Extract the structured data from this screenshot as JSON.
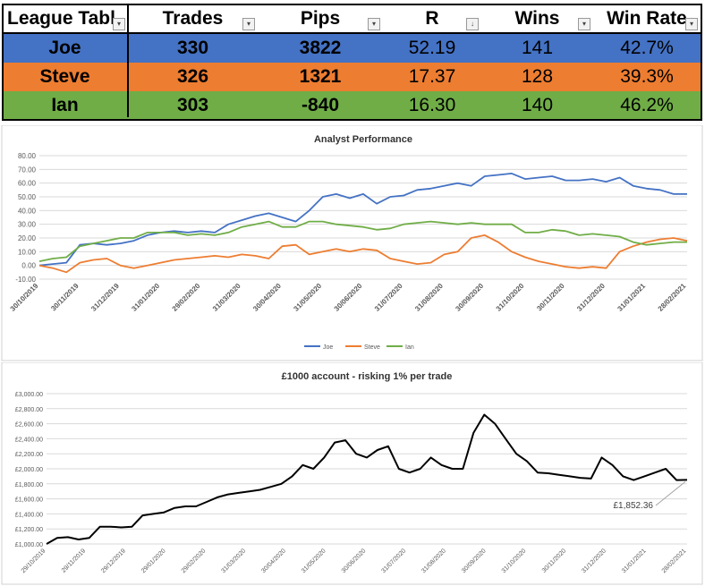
{
  "table": {
    "headers": [
      "League Tabl",
      "Trades",
      "Pips",
      "R",
      "Wins",
      "Win Rate"
    ],
    "rows": [
      {
        "name": "Joe",
        "trades": "330",
        "pips": "3822",
        "r": "52.19",
        "wins": "141",
        "win_rate": "42.7%"
      },
      {
        "name": "Steve",
        "trades": "326",
        "pips": "1321",
        "r": "17.37",
        "wins": "128",
        "win_rate": "39.3%"
      },
      {
        "name": "Ian",
        "trades": "303",
        "pips": "-840",
        "r": "16.30",
        "wins": "140",
        "win_rate": "46.2%"
      }
    ],
    "colors": {
      "joe": "#4472c4",
      "steve": "#ed7d31",
      "ian": "#70ad47"
    }
  },
  "chart_data": [
    {
      "type": "line",
      "title": "Analyst Performance",
      "xlabel": "",
      "ylabel": "",
      "ylim": [
        -10,
        80
      ],
      "yticks": [
        "-10.00",
        "0.00",
        "10.00",
        "20.00",
        "30.00",
        "40.00",
        "50.00",
        "60.00",
        "70.00",
        "80.00"
      ],
      "xticks": [
        "30/10/2019",
        "30/11/2019",
        "31/12/2019",
        "31/01/2020",
        "29/02/2020",
        "31/03/2020",
        "30/04/2020",
        "31/05/2020",
        "30/06/2020",
        "31/07/2020",
        "31/08/2020",
        "30/09/2020",
        "31/10/2020",
        "30/11/2020",
        "31/12/2020",
        "31/01/2021",
        "28/02/2021"
      ],
      "grid": true,
      "legend": "bottom",
      "series": [
        {
          "name": "Joe",
          "color": "#4472c4",
          "values": [
            0,
            1,
            2,
            15,
            16,
            15,
            16,
            18,
            22,
            24,
            25,
            24,
            25,
            24,
            30,
            33,
            36,
            38,
            35,
            32,
            40,
            50,
            52,
            49,
            52,
            45,
            50,
            51,
            55,
            56,
            58,
            60,
            58,
            65,
            66,
            67,
            63,
            64,
            65,
            62,
            62,
            63,
            61,
            64,
            58,
            56,
            55,
            52,
            52
          ]
        },
        {
          "name": "Steve",
          "color": "#ed7d31",
          "values": [
            0,
            -2,
            -5,
            2,
            4,
            5,
            0,
            -2,
            0,
            2,
            4,
            5,
            6,
            7,
            6,
            8,
            7,
            5,
            14,
            15,
            8,
            10,
            12,
            10,
            12,
            11,
            5,
            3,
            1,
            2,
            8,
            10,
            20,
            22,
            17,
            10,
            6,
            3,
            1,
            -1,
            -2,
            -1,
            -2,
            10,
            14,
            17,
            19,
            20,
            18
          ]
        },
        {
          "name": "Ian",
          "color": "#70ad47",
          "values": [
            3,
            5,
            6,
            14,
            16,
            18,
            20,
            20,
            24,
            24,
            24,
            22,
            23,
            22,
            24,
            28,
            30,
            32,
            28,
            28,
            32,
            32,
            30,
            29,
            28,
            26,
            27,
            30,
            31,
            32,
            31,
            30,
            31,
            30,
            30,
            30,
            24,
            24,
            26,
            25,
            22,
            23,
            22,
            21,
            17,
            15,
            16,
            17,
            17
          ]
        }
      ]
    },
    {
      "type": "line",
      "title": "£1000 account - risking 1% per trade",
      "xlabel": "",
      "ylabel": "",
      "ylim": [
        1000,
        3000
      ],
      "yticks": [
        "£1,000.00",
        "£1,200.00",
        "£1,400.00",
        "£1,600.00",
        "£1,800.00",
        "£2,000.00",
        "£2,200.00",
        "£2,400.00",
        "£2,600.00",
        "£2,800.00",
        "£3,000.00"
      ],
      "xticks": [
        "29/10/2019",
        "29/11/2019",
        "29/12/2019",
        "29/01/2020",
        "29/02/2020",
        "31/03/2020",
        "30/04/2020",
        "31/05/2020",
        "30/06/2020",
        "31/07/2020",
        "31/08/2020",
        "30/09/2020",
        "31/10/2020",
        "30/11/2020",
        "31/12/2020",
        "31/01/2021",
        "28/02/2021"
      ],
      "grid": true,
      "annotation": "£1,852.36",
      "series": [
        {
          "name": "",
          "color": "#000000",
          "values": [
            1000,
            1080,
            1090,
            1060,
            1080,
            1230,
            1230,
            1220,
            1230,
            1380,
            1400,
            1420,
            1480,
            1500,
            1500,
            1560,
            1620,
            1660,
            1680,
            1700,
            1720,
            1760,
            1800,
            1900,
            2050,
            2000,
            2150,
            2350,
            2380,
            2200,
            2150,
            2250,
            2300,
            2000,
            1950,
            2000,
            2150,
            2050,
            2000,
            2000,
            2480,
            2720,
            2600,
            2400,
            2200,
            2100,
            1950,
            1940,
            1920,
            1900,
            1880,
            1870,
            2150,
            2050,
            1900,
            1850,
            1900,
            1950,
            2000,
            1850,
            1852.36
          ]
        }
      ]
    }
  ]
}
